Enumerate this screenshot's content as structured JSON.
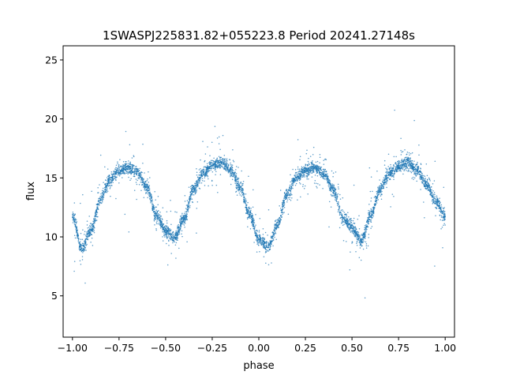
{
  "chart_data": {
    "type": "scatter",
    "title": "1SWASPJ225831.82+055223.8 Period 20241.27148s",
    "xlabel": "phase",
    "ylabel": "flux",
    "xlim": [
      -1.05,
      1.05
    ],
    "ylim": [
      1.5,
      26.2
    ],
    "xticks": [
      -1.0,
      -0.75,
      -0.5,
      -0.25,
      0.0,
      0.25,
      0.5,
      0.75,
      1.0
    ],
    "xtick_labels": [
      "−1.00",
      "−0.75",
      "−0.50",
      "−0.25",
      "0.00",
      "0.25",
      "0.50",
      "0.75",
      "1.00"
    ],
    "yticks": [
      5,
      10,
      15,
      20,
      25
    ],
    "ytick_labels": [
      "5",
      "10",
      "15",
      "20",
      "25"
    ],
    "grid": false,
    "marker_color": "#1f77b4",
    "series": [
      {
        "x": [
          -1.0,
          -0.95,
          -0.9,
          -0.85,
          -0.8,
          -0.75,
          -0.7,
          -0.65,
          -0.6,
          -0.55,
          -0.5,
          -0.45,
          -0.4,
          -0.35,
          -0.3,
          -0.25,
          -0.2,
          -0.15,
          -0.1,
          -0.05,
          0.0,
          0.05,
          0.1,
          0.15,
          0.2,
          0.25,
          0.3,
          0.35,
          0.4,
          0.45,
          0.5,
          0.55,
          0.6,
          0.65,
          0.7,
          0.75,
          0.8,
          0.85,
          0.9,
          0.95,
          1.0
        ],
        "y": [
          11.8,
          9.0,
          10.6,
          13.2,
          14.8,
          15.6,
          15.9,
          15.5,
          14.2,
          11.8,
          10.5,
          9.9,
          11.6,
          14.0,
          15.4,
          16.1,
          16.3,
          15.6,
          14.2,
          12.0,
          9.8,
          9.2,
          11.0,
          13.6,
          15.0,
          15.6,
          15.9,
          15.3,
          14.0,
          11.6,
          10.8,
          9.7,
          11.8,
          14.0,
          15.4,
          16.0,
          16.3,
          15.7,
          14.4,
          13.0,
          11.8
        ]
      }
    ]
  }
}
